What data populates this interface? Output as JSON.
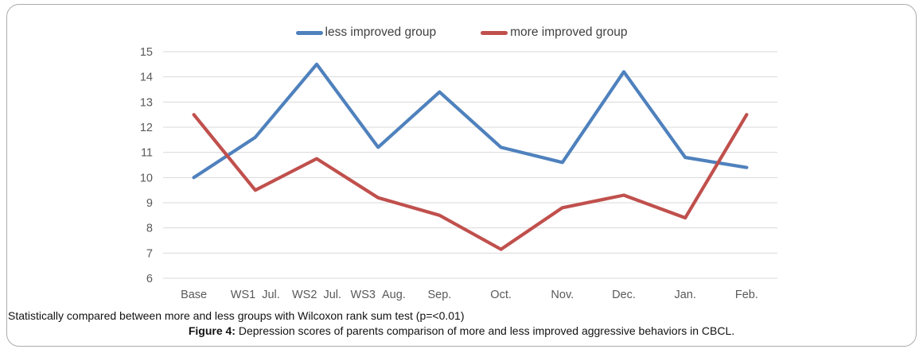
{
  "figure": {
    "caption_line1": "Statistically compared between more and less groups with Wilcoxon rank sum test (p=<0.01)",
    "caption_line2_bold": "Figure 4:",
    "caption_line2_rest": " Depression scores of parents comparison of more and less improved aggressive behaviors in CBCL."
  },
  "legend": {
    "items": [
      {
        "label": "less improved group",
        "color": "#4F81BD"
      },
      {
        "label": "more improved group",
        "color": "#C0504D"
      }
    ],
    "position": "top-center"
  },
  "chart_data": {
    "type": "line",
    "title": "",
    "xlabel": "",
    "ylabel": "",
    "categories": [
      "Base",
      "WS1 Jul.",
      "WS2 Jul.",
      "WS3 Aug.",
      "Sep.",
      "Oct.",
      "Nov.",
      "Dec.",
      "Jan.",
      "Feb."
    ],
    "series": [
      {
        "name": "less improved group",
        "color": "#4F81BD",
        "values": [
          10.0,
          11.6,
          14.5,
          11.2,
          13.4,
          11.2,
          10.6,
          14.2,
          10.8,
          10.4
        ]
      },
      {
        "name": "more improved group",
        "color": "#C0504D",
        "values": [
          12.5,
          9.5,
          10.75,
          9.2,
          8.5,
          7.15,
          8.8,
          9.3,
          8.4,
          12.5
        ]
      }
    ],
    "ylim": [
      6,
      15
    ],
    "ytick_step": 1,
    "yticks": [
      6,
      7,
      8,
      9,
      10,
      11,
      12,
      13,
      14,
      15
    ],
    "grid": true,
    "legend_position": "top-center"
  },
  "colors": {
    "grid": "#D9D9D9",
    "axis_text": "#595959",
    "frame_border": "#ABABAB",
    "caption_text": "#111111"
  }
}
